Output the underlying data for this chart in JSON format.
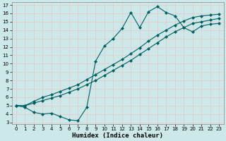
{
  "line1_x": [
    0,
    1,
    2,
    3,
    4,
    5,
    6,
    7,
    8,
    9,
    10,
    11,
    12,
    13,
    14,
    15,
    16,
    17,
    18,
    19,
    20,
    21,
    22,
    23
  ],
  "line1_y": [
    5.0,
    4.8,
    4.2,
    4.0,
    4.1,
    3.7,
    3.3,
    3.2,
    4.8,
    10.3,
    12.1,
    13.0,
    14.2,
    16.1,
    14.3,
    16.2,
    16.8,
    16.1,
    15.7,
    14.3,
    13.8,
    14.5,
    14.7,
    14.8
  ],
  "line2_x": [
    0,
    1,
    2,
    3,
    4,
    5,
    6,
    7,
    8,
    9,
    10,
    11,
    12,
    13,
    14,
    15,
    16,
    17,
    18,
    19,
    20,
    21,
    22,
    23
  ],
  "line2_y": [
    5.0,
    5.0,
    5.3,
    5.6,
    5.9,
    6.2,
    6.6,
    7.0,
    7.5,
    8.0,
    8.6,
    9.2,
    9.8,
    10.4,
    11.1,
    11.8,
    12.5,
    13.2,
    13.8,
    14.3,
    14.8,
    15.0,
    15.2,
    15.4
  ],
  "line3_x": [
    0,
    1,
    2,
    3,
    4,
    5,
    6,
    7,
    8,
    9,
    10,
    11,
    12,
    13,
    14,
    15,
    16,
    17,
    18,
    19,
    20,
    21,
    22,
    23
  ],
  "line3_y": [
    5.0,
    5.0,
    5.5,
    6.0,
    6.3,
    6.7,
    7.1,
    7.5,
    8.1,
    8.7,
    9.3,
    9.9,
    10.5,
    11.2,
    11.9,
    12.7,
    13.4,
    14.0,
    14.6,
    15.1,
    15.5,
    15.7,
    15.8,
    15.9
  ],
  "line_color": "#006060",
  "marker": "D",
  "marker_size": 2.0,
  "linewidth": 0.8,
  "xlabel": "Humidex (Indice chaleur)",
  "xlim": [
    -0.5,
    23.5
  ],
  "ylim": [
    2.8,
    17.3
  ],
  "xticks": [
    0,
    1,
    2,
    3,
    4,
    5,
    6,
    7,
    8,
    9,
    10,
    11,
    12,
    13,
    14,
    15,
    16,
    17,
    18,
    19,
    20,
    21,
    22,
    23
  ],
  "yticks": [
    3,
    4,
    5,
    6,
    7,
    8,
    9,
    10,
    11,
    12,
    13,
    14,
    15,
    16,
    17
  ],
  "bg_color": "#cce8e8",
  "grid_color": "#e8c8c8",
  "tick_fontsize": 5.0,
  "xlabel_fontsize": 6.5
}
